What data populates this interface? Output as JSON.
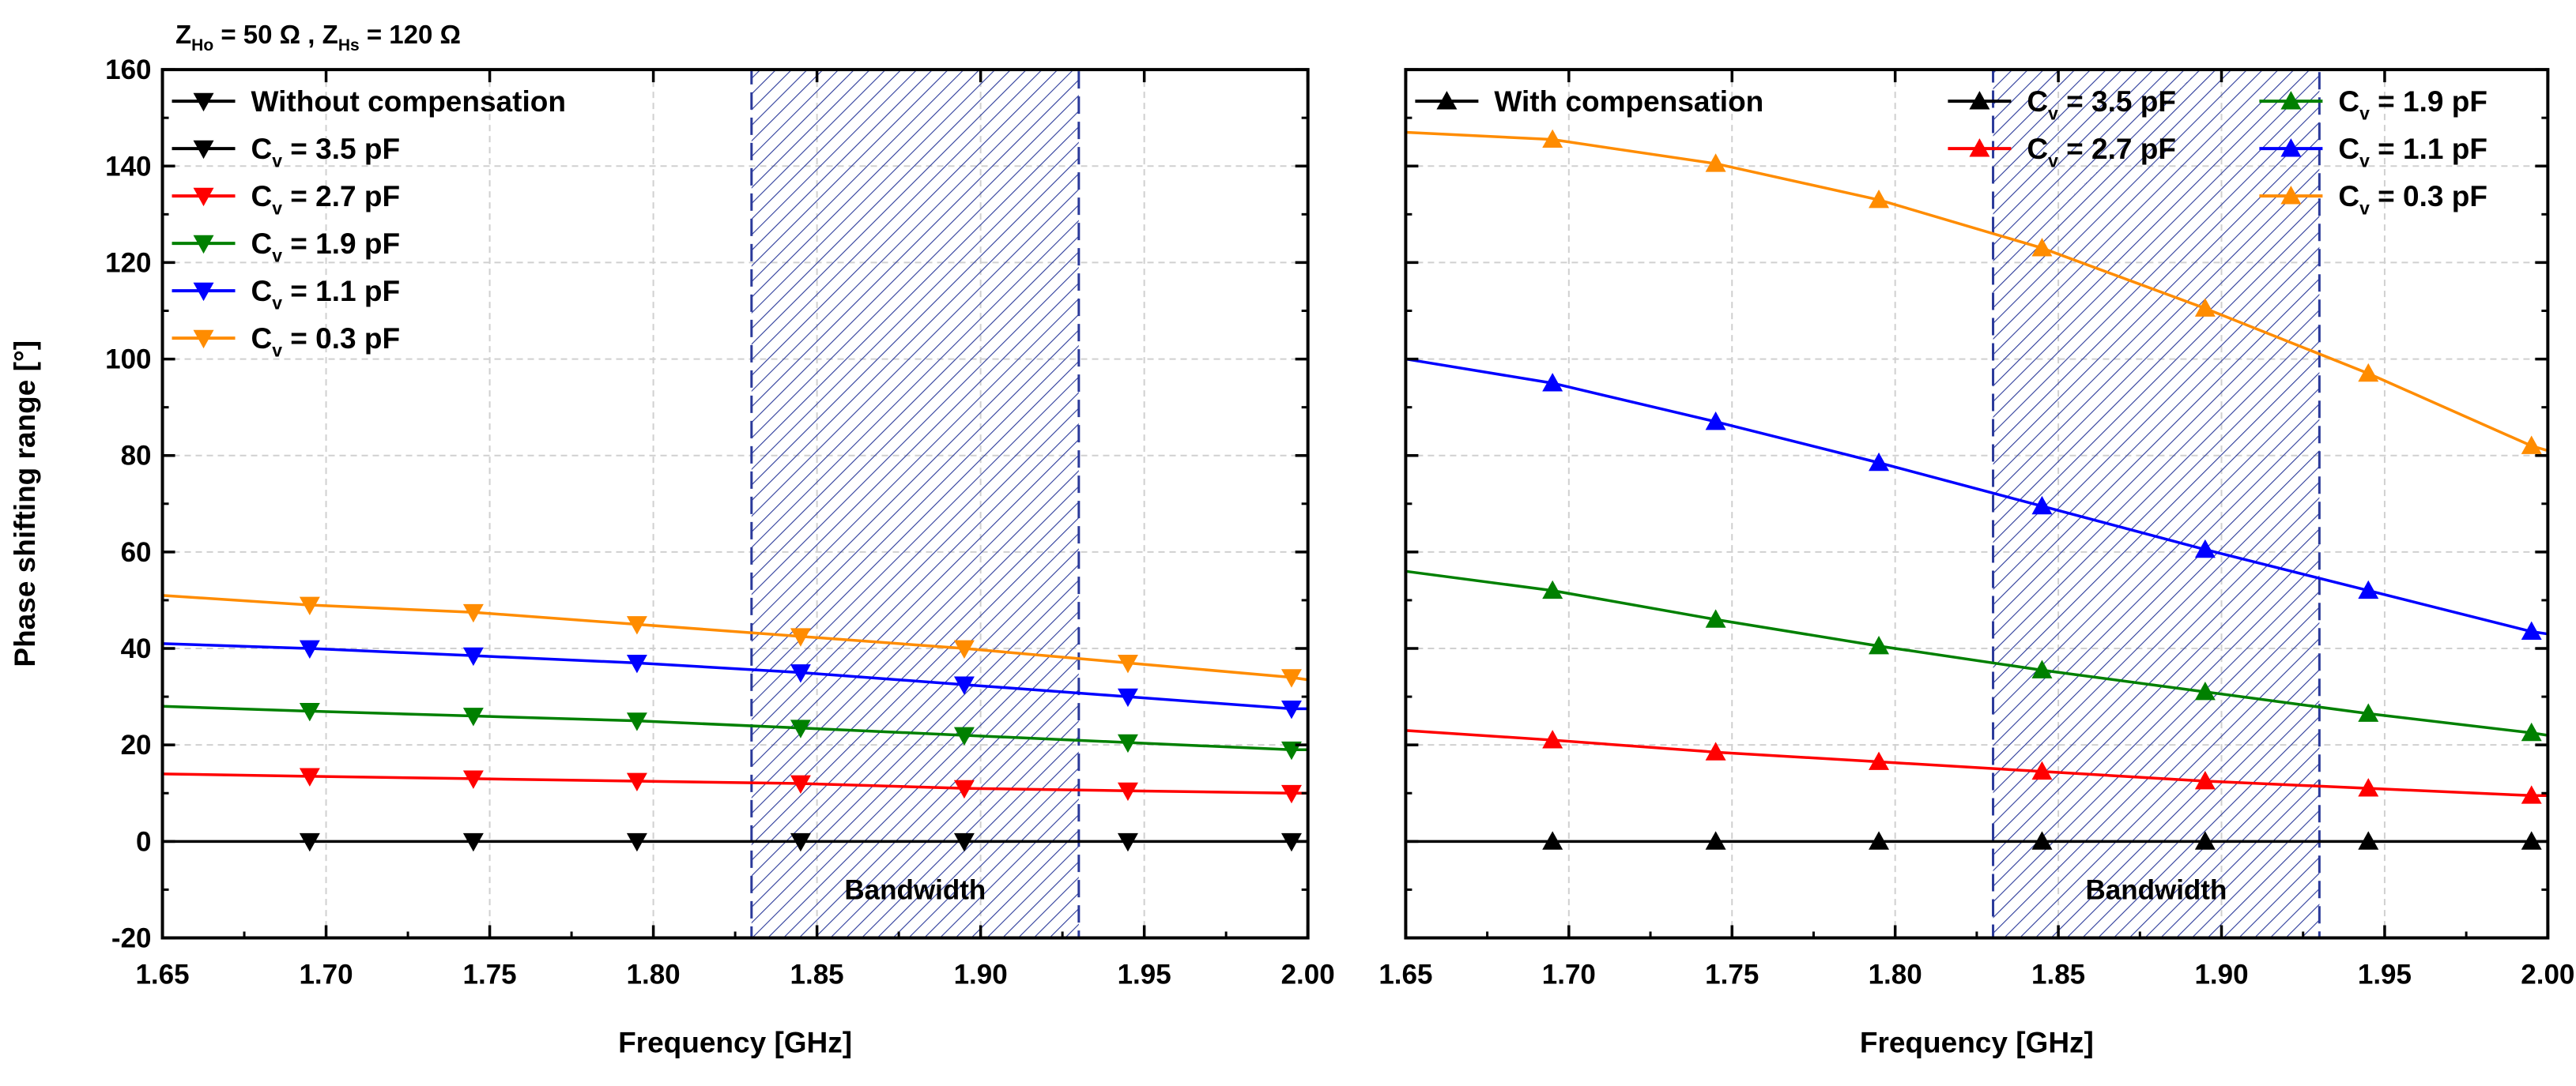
{
  "figure_title": {
    "z_ho_main": "Z",
    "z_ho_sub": "Ho",
    "z_ho_value": " = 50 Ω",
    "separator": " , ",
    "z_hs_main": "Z",
    "z_hs_sub": "Hs",
    "z_hs_value": " = 120 Ω"
  },
  "colors": {
    "Cv = 3.5 pF": "#000000",
    "Cv = 2.7 pF": "#ff0000",
    "Cv = 1.9 pF": "#008000",
    "Cv = 1.1 pF": "#0000ff",
    "Cv = 0.3 pF": "#ff8c00",
    "bandwidth_hatch": "#2b3a9a"
  },
  "chart_data": [
    {
      "type": "line",
      "title": "",
      "xlabel": "Frequency [GHz]",
      "ylabel": "Phase shifting range [°]",
      "xlim": [
        1.65,
        2.0
      ],
      "ylim": [
        -20,
        160
      ],
      "xticks": [
        "1.65",
        "1.70",
        "1.75",
        "1.80",
        "1.85",
        "1.90",
        "1.95",
        "2.00"
      ],
      "yticks": [
        "-20",
        "0",
        "20",
        "40",
        "60",
        "80",
        "100",
        "120",
        "140",
        "160"
      ],
      "grid": true,
      "marker": "triangle-down",
      "legend_heading": "Without compensation",
      "legend_layout": "column",
      "bandwidth": {
        "label": "Bandwidth",
        "x_range": [
          1.83,
          1.93
        ]
      },
      "x": [
        1.65,
        1.695,
        1.745,
        1.795,
        1.845,
        1.895,
        1.945,
        1.995,
        2.0
      ],
      "marker_x": [
        1.695,
        1.745,
        1.795,
        1.845,
        1.895,
        1.945,
        1.995
      ],
      "series": [
        {
          "name": "Cv = 3.5 pF",
          "label_main": "C",
          "label_sub": "v",
          "label_value": " = 3.5 pF",
          "values": [
            0,
            0,
            0,
            0,
            0,
            0,
            0,
            0,
            0
          ]
        },
        {
          "name": "Cv = 2.7 pF",
          "label_main": "C",
          "label_sub": "v",
          "label_value": " = 2.7 pF",
          "values": [
            14,
            13.5,
            13,
            12.5,
            12,
            11,
            10.5,
            10,
            10
          ]
        },
        {
          "name": "Cv = 1.9 pF",
          "label_main": "C",
          "label_sub": "v",
          "label_value": " = 1.9 pF",
          "values": [
            28,
            27,
            26,
            25,
            23.5,
            22,
            20.5,
            19,
            19
          ]
        },
        {
          "name": "Cv = 1.1 pF",
          "label_main": "C",
          "label_sub": "v",
          "label_value": " = 1.1 pF",
          "values": [
            41,
            40,
            38.5,
            37,
            35,
            32.5,
            30,
            27.5,
            27.5
          ]
        },
        {
          "name": "Cv = 0.3 pF",
          "label_main": "C",
          "label_sub": "v",
          "label_value": " = 0.3 pF",
          "values": [
            51,
            49,
            47.5,
            45,
            42.5,
            40,
            37,
            34,
            33.5
          ]
        }
      ]
    },
    {
      "type": "line",
      "title": "",
      "xlabel": "Frequency [GHz]",
      "ylabel": "",
      "xlim": [
        1.65,
        2.0
      ],
      "ylim": [
        -20,
        160
      ],
      "xticks": [
        "1.65",
        "1.70",
        "1.75",
        "1.80",
        "1.85",
        "1.90",
        "1.95",
        "2.00"
      ],
      "yticks": [],
      "grid": true,
      "marker": "triangle-up",
      "legend_heading": "With compensation",
      "legend_layout": "grid",
      "bandwidth": {
        "label": "Bandwidth",
        "x_range": [
          1.83,
          1.93
        ]
      },
      "x": [
        1.65,
        1.695,
        1.745,
        1.795,
        1.845,
        1.895,
        1.945,
        1.995,
        2.0
      ],
      "marker_x": [
        1.695,
        1.745,
        1.795,
        1.845,
        1.895,
        1.945,
        1.995
      ],
      "series": [
        {
          "name": "Cv = 3.5 pF",
          "label_main": "C",
          "label_sub": "v",
          "label_value": " = 3.5 pF",
          "values": [
            0,
            0,
            0,
            0,
            0,
            0,
            0,
            0,
            0
          ]
        },
        {
          "name": "Cv = 2.7 pF",
          "label_main": "C",
          "label_sub": "v",
          "label_value": " = 2.7 pF",
          "values": [
            23,
            21,
            18.5,
            16.5,
            14.5,
            12.5,
            11,
            9.5,
            9.5
          ]
        },
        {
          "name": "Cv = 1.9 pF",
          "label_main": "C",
          "label_sub": "v",
          "label_value": " = 1.9 pF",
          "values": [
            56,
            52,
            46,
            40.5,
            35.5,
            31,
            26.5,
            22.5,
            22
          ]
        },
        {
          "name": "Cv = 1.1 pF",
          "label_main": "C",
          "label_sub": "v",
          "label_value": " = 1.1 pF",
          "values": [
            100,
            95,
            87,
            78.5,
            69.5,
            60.5,
            52,
            43.5,
            43
          ]
        },
        {
          "name": "Cv = 0.3 pF",
          "label_main": "C",
          "label_sub": "v",
          "label_value": " = 0.3 pF",
          "values": [
            147,
            145.5,
            140.5,
            133,
            123,
            110.5,
            97,
            82,
            81
          ]
        }
      ]
    }
  ]
}
